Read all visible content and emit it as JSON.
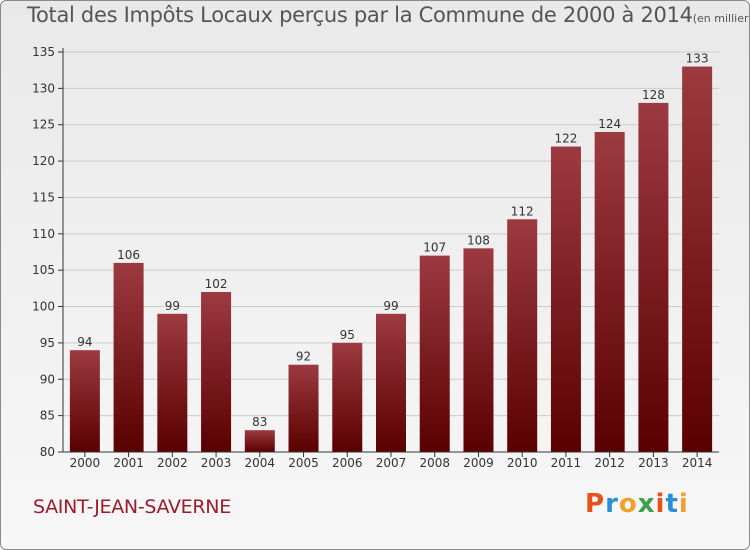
{
  "header": {
    "title": "Total des Impôts Locaux perçus par la Commune de 2000 à 2014",
    "subtitle": "(en milliers d'€)"
  },
  "footer": {
    "commune": "SAINT-JEAN-SAVERNE",
    "logo": {
      "text": "Proxiti",
      "colors": [
        "#e8501c",
        "#2a8fd6",
        "#f0a030",
        "#3aa04a",
        "#e8501c",
        "#2a8fd6",
        "#f0a030"
      ]
    }
  },
  "colors": {
    "bar_top": "#9c3a40",
    "bar_bottom": "#5a0000",
    "axis": "#333333",
    "grid": "#cccccc"
  },
  "chart_data": {
    "type": "bar",
    "title": "Total des Impôts Locaux perçus par la Commune de 2000 à 2014",
    "ylabel": "(en milliers d'€)",
    "xlabel": "",
    "categories": [
      "2000",
      "2001",
      "2002",
      "2003",
      "2004",
      "2005",
      "2006",
      "2007",
      "2008",
      "2009",
      "2010",
      "2011",
      "2012",
      "2013",
      "2014"
    ],
    "values": [
      94,
      106,
      99,
      102,
      83,
      92,
      95,
      99,
      107,
      108,
      112,
      122,
      124,
      128,
      133
    ],
    "value_labels": [
      "94",
      "106",
      "99",
      "102",
      "83",
      "92",
      "95",
      "99",
      "107",
      "108",
      "112",
      "122",
      "124",
      "128",
      "133"
    ],
    "ylim": [
      80,
      135
    ],
    "yticks": [
      80,
      85,
      90,
      95,
      100,
      105,
      110,
      115,
      120,
      125,
      130,
      135
    ],
    "ytick_labels": [
      "80",
      "85",
      "90",
      "95",
      "100",
      "105",
      "110",
      "115",
      "120",
      "125",
      "130",
      "135"
    ],
    "grid": true
  }
}
